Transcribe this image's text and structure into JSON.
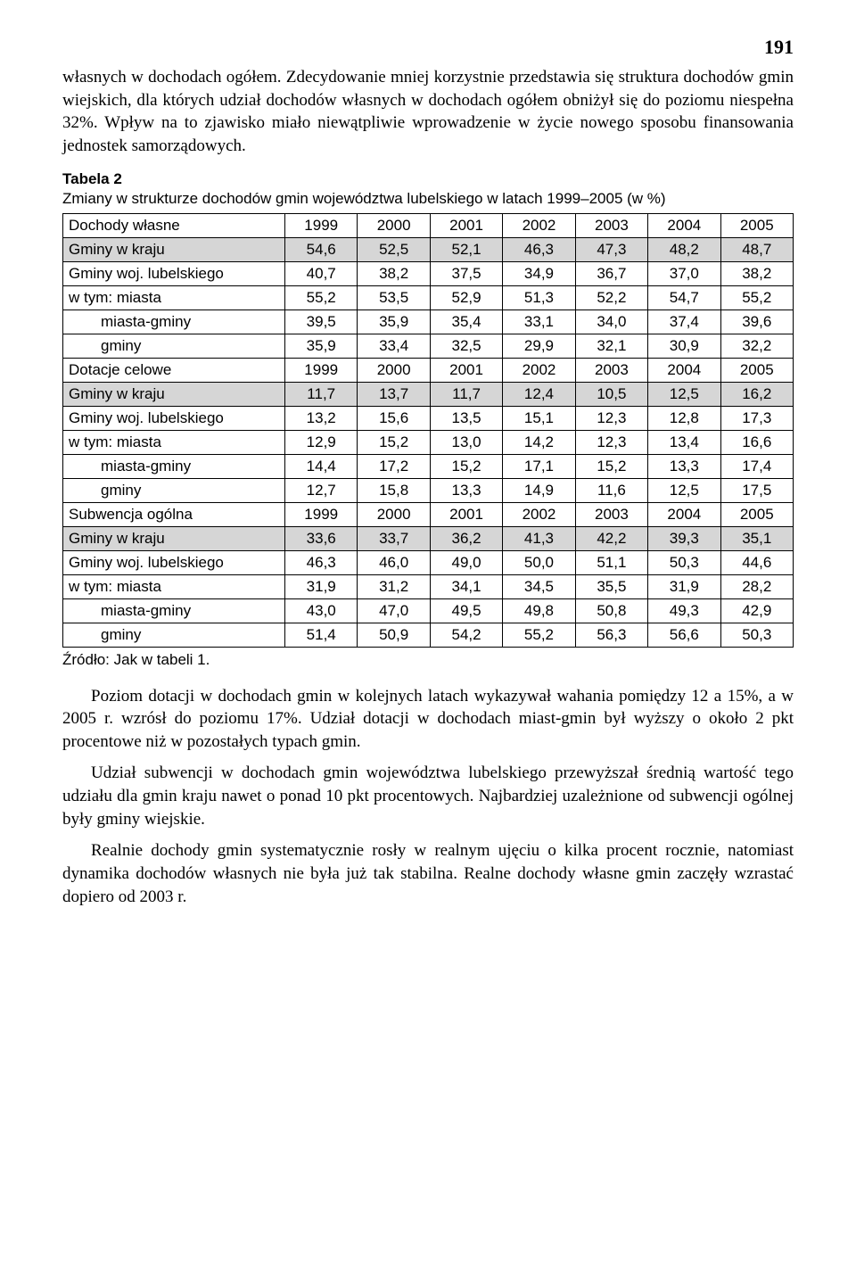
{
  "page_number": "191",
  "paras": {
    "p1": "własnych w dochodach ogółem. Zdecydowanie mniej korzystnie przedstawia się struktura dochodów gmin wiejskich, dla których udział dochodów własnych w dochodach ogółem obniżył się do poziomu niespełna 32%. Wpływ na to zjawisko miało niewątpliwie wprowadzenie w życie nowego sposobu finansowania jednostek samorządowych.",
    "p2": "Poziom dotacji w dochodach gmin w kolejnych latach wykazywał wahania pomiędzy 12 a 15%, a w 2005 r. wzrósł do poziomu 17%. Udział dotacji w dochodach miast-gmin był wyższy o około 2 pkt procentowe niż  w pozostałych typach gmin.",
    "p3": "Udział subwencji w dochodach gmin województwa lubelskiego przewyższał średnią wartość tego udziału dla gmin kraju nawet o ponad 10 pkt procentowych. Najbardziej uzależnione od subwencji ogólnej były gminy wiejskie.",
    "p4": "Realnie dochody gmin systematycznie rosły w realnym ujęciu o kilka procent rocznie, natomiast dynamika dochodów własnych nie była już tak stabilna. Realne dochody własne gmin zaczęły wzrastać dopiero od 2003 r."
  },
  "table": {
    "caption_label": "Tabela 2",
    "caption_text": "Zmiany w strukturze dochodów gmin województwa lubelskiego w latach 1999–2005 (w %)",
    "source": "Źródło: Jak w tabeli 1.",
    "rows": [
      {
        "shade": false,
        "indent": false,
        "cells": [
          "Dochody własne",
          "1999",
          "2000",
          "2001",
          "2002",
          "2003",
          "2004",
          "2005"
        ]
      },
      {
        "shade": true,
        "indent": false,
        "cells": [
          "Gminy w kraju",
          "54,6",
          "52,5",
          "52,1",
          "46,3",
          "47,3",
          "48,2",
          "48,7"
        ]
      },
      {
        "shade": false,
        "indent": false,
        "cells": [
          "Gminy woj. lubelskiego",
          "40,7",
          "38,2",
          "37,5",
          "34,9",
          "36,7",
          "37,0",
          "38,2"
        ]
      },
      {
        "shade": false,
        "indent": false,
        "cells": [
          "w tym: miasta",
          "55,2",
          "53,5",
          "52,9",
          "51,3",
          "52,2",
          "54,7",
          "55,2"
        ]
      },
      {
        "shade": false,
        "indent": true,
        "cells": [
          "miasta-gminy",
          "39,5",
          "35,9",
          "35,4",
          "33,1",
          "34,0",
          "37,4",
          "39,6"
        ]
      },
      {
        "shade": false,
        "indent": true,
        "cells": [
          "gminy",
          "35,9",
          "33,4",
          "32,5",
          "29,9",
          "32,1",
          "30,9",
          "32,2"
        ]
      },
      {
        "shade": false,
        "indent": false,
        "cells": [
          "Dotacje celowe",
          "1999",
          "2000",
          "2001",
          "2002",
          "2003",
          "2004",
          "2005"
        ]
      },
      {
        "shade": true,
        "indent": false,
        "cells": [
          "Gminy w kraju",
          "11,7",
          "13,7",
          "11,7",
          "12,4",
          "10,5",
          "12,5",
          "16,2"
        ]
      },
      {
        "shade": false,
        "indent": false,
        "cells": [
          "Gminy woj. lubelskiego",
          "13,2",
          "15,6",
          "13,5",
          "15,1",
          "12,3",
          "12,8",
          "17,3"
        ]
      },
      {
        "shade": false,
        "indent": false,
        "cells": [
          "w tym: miasta",
          "12,9",
          "15,2",
          "13,0",
          "14,2",
          "12,3",
          "13,4",
          "16,6"
        ]
      },
      {
        "shade": false,
        "indent": true,
        "cells": [
          "miasta-gminy",
          "14,4",
          "17,2",
          "15,2",
          "17,1",
          "15,2",
          "13,3",
          "17,4"
        ]
      },
      {
        "shade": false,
        "indent": true,
        "cells": [
          "gminy",
          "12,7",
          "15,8",
          "13,3",
          "14,9",
          "11,6",
          "12,5",
          "17,5"
        ]
      },
      {
        "shade": false,
        "indent": false,
        "cells": [
          "Subwencja ogólna",
          "1999",
          "2000",
          "2001",
          "2002",
          "2003",
          "2004",
          "2005"
        ]
      },
      {
        "shade": true,
        "indent": false,
        "cells": [
          "Gminy w kraju",
          "33,6",
          "33,7",
          "36,2",
          "41,3",
          "42,2",
          "39,3",
          "35,1"
        ]
      },
      {
        "shade": false,
        "indent": false,
        "cells": [
          "Gminy woj. lubelskiego",
          "46,3",
          "46,0",
          "49,0",
          "50,0",
          "51,1",
          "50,3",
          "44,6"
        ]
      },
      {
        "shade": false,
        "indent": false,
        "cells": [
          "w tym: miasta",
          "31,9",
          "31,2",
          "34,1",
          "34,5",
          "35,5",
          "31,9",
          "28,2"
        ]
      },
      {
        "shade": false,
        "indent": true,
        "cells": [
          "miasta-gminy",
          "43,0",
          "47,0",
          "49,5",
          "49,8",
          "50,8",
          "49,3",
          "42,9"
        ]
      },
      {
        "shade": false,
        "indent": true,
        "cells": [
          "gminy",
          "51,4",
          "50,9",
          "54,2",
          "55,2",
          "56,3",
          "56,6",
          "50,3"
        ]
      }
    ],
    "style": {
      "shaded_bg": "#d6d6d6",
      "border_color": "#000000",
      "cell_fontsize": 17,
      "font_family": "Arial"
    }
  },
  "body_text_style": {
    "font_family": "Times New Roman",
    "font_size_pt": 19,
    "text_color": "#000000",
    "background_color": "#ffffff"
  }
}
